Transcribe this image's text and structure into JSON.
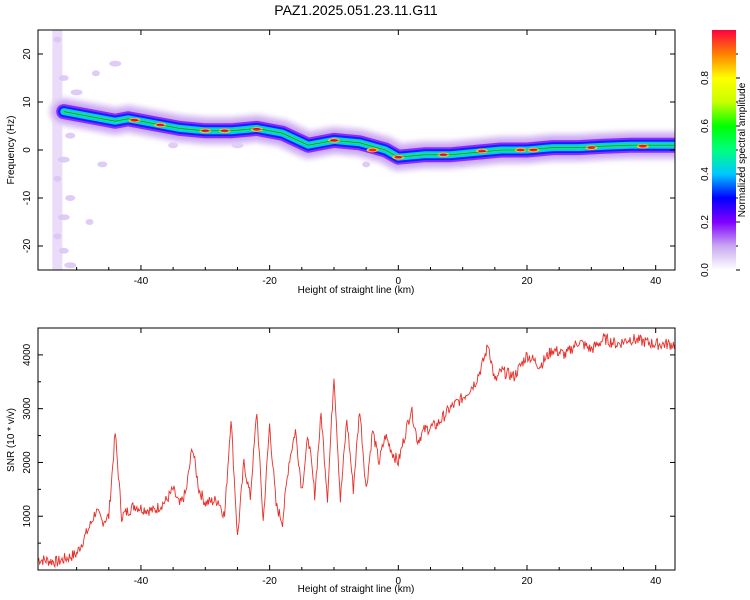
{
  "title": "PAZ1.2025.051.23.11.G11",
  "chart_data": [
    {
      "type": "heatmap",
      "title": "PAZ1.2025.051.23.11.G11",
      "xlabel": "Height of straight line (km)",
      "ylabel": "Frequency (Hz)",
      "xlim": [
        -56,
        43
      ],
      "ylim": [
        -25,
        25
      ],
      "xticks": [
        -40,
        -20,
        0,
        20,
        40
      ],
      "yticks": [
        20,
        10,
        0,
        -10,
        -20
      ],
      "colorbar": {
        "label": "Normalized spectral amplitude",
        "range": [
          0,
          1
        ],
        "ticks": [
          "0.0",
          "0.2",
          "0.4",
          "0.6",
          "0.8"
        ],
        "colors": [
          "#ffffff",
          "#c8a8f0",
          "#8000ff",
          "#0000ff",
          "#00c8ff",
          "#00ff80",
          "#00ff00",
          "#c8ff00",
          "#ffff00",
          "#ff8000",
          "#ff0040"
        ]
      },
      "ridge": {
        "x": [
          -52,
          -48,
          -44,
          -42,
          -38,
          -34,
          -30,
          -26,
          -22,
          -18,
          -14,
          -10,
          -6,
          -2,
          0,
          4,
          8,
          12,
          16,
          20,
          24,
          28,
          32,
          36,
          40,
          43
        ],
        "y": [
          8,
          7,
          6,
          6.5,
          5.5,
          4.5,
          4,
          4,
          4.5,
          3.5,
          1,
          2,
          1.5,
          0,
          -1.5,
          -1,
          -1,
          -0.5,
          0,
          0,
          0.5,
          0.5,
          0.8,
          1,
          1,
          1
        ]
      }
    },
    {
      "type": "line",
      "xlabel": "Height of straight line (km)",
      "ylabel": "SNR (10 * v/v)",
      "xlim": [
        -56,
        43
      ],
      "ylim": [
        0,
        4500
      ],
      "xticks": [
        -40,
        -20,
        0,
        20,
        40
      ],
      "yticks": [
        1000,
        2000,
        3000,
        4000
      ],
      "color": "#e8302a",
      "x": [
        -56,
        -53,
        -50,
        -48,
        -47,
        -46,
        -45,
        -44,
        -43,
        -42,
        -41,
        -40,
        -38,
        -36,
        -35,
        -34,
        -33,
        -32,
        -31,
        -30,
        -28,
        -27,
        -26,
        -25,
        -24,
        -23,
        -22,
        -21,
        -20,
        -19,
        -18,
        -17,
        -16,
        -15,
        -14,
        -13,
        -12,
        -11,
        -10,
        -9,
        -8,
        -7,
        -6,
        -5,
        -4,
        -3,
        -2,
        -1,
        0,
        1,
        2,
        3,
        4,
        6,
        8,
        10,
        12,
        13,
        14,
        15,
        16,
        18,
        20,
        22,
        24,
        26,
        28,
        30,
        32,
        34,
        36,
        38,
        40,
        43
      ],
      "y": [
        200,
        150,
        300,
        800,
        1100,
        900,
        1000,
        2550,
        1000,
        1100,
        1200,
        1150,
        1100,
        1300,
        1500,
        1200,
        1450,
        2300,
        1500,
        1250,
        1300,
        1000,
        2850,
        600,
        2000,
        1350,
        2950,
        900,
        2700,
        1200,
        900,
        2000,
        2600,
        1500,
        2500,
        1400,
        2900,
        1350,
        3650,
        1300,
        2800,
        1500,
        3000,
        1500,
        2600,
        2000,
        2500,
        2200,
        2000,
        2500,
        3000,
        2400,
        2600,
        2700,
        3000,
        3200,
        3500,
        3800,
        4200,
        3500,
        3700,
        3600,
        4000,
        3800,
        4100,
        4000,
        4250,
        4100,
        4300,
        4200,
        4300,
        4250,
        4200,
        4200
      ]
    }
  ]
}
